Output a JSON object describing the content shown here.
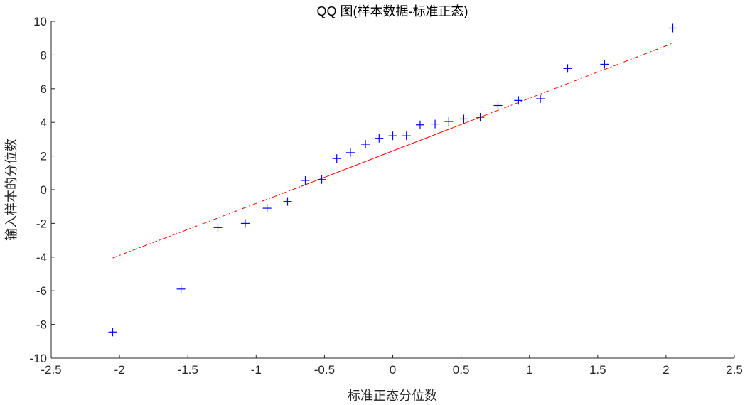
{
  "chart_data": {
    "type": "scatter",
    "title": "QQ 图(样本数据-标准正态)",
    "xlabel": "标准正态分位数",
    "ylabel": "输入样本的分位数",
    "xlim": [
      -2.5,
      2.5
    ],
    "ylim": [
      -10,
      10
    ],
    "xticks": [
      "-2.5",
      "-2",
      "-1.5",
      "-1",
      "-0.5",
      "0",
      "0.5",
      "1",
      "1.5",
      "2",
      "2.5"
    ],
    "yticks": [
      "-10",
      "-8",
      "-6",
      "-4",
      "-2",
      "0",
      "2",
      "4",
      "6",
      "8",
      "10"
    ],
    "grid": false,
    "series": [
      {
        "marker": "+",
        "color": "#0000ff",
        "points": [
          {
            "x": -2.05,
            "y": -8.45
          },
          {
            "x": -1.55,
            "y": -5.9
          },
          {
            "x": -1.28,
            "y": -2.25
          },
          {
            "x": -1.08,
            "y": -2.0
          },
          {
            "x": -0.92,
            "y": -1.1
          },
          {
            "x": -0.77,
            "y": -0.7
          },
          {
            "x": -0.64,
            "y": 0.55
          },
          {
            "x": -0.52,
            "y": 0.6
          },
          {
            "x": -0.41,
            "y": 1.85
          },
          {
            "x": -0.31,
            "y": 2.2
          },
          {
            "x": -0.2,
            "y": 2.7
          },
          {
            "x": -0.1,
            "y": 3.05
          },
          {
            "x": 0.0,
            "y": 3.2
          },
          {
            "x": 0.1,
            "y": 3.2
          },
          {
            "x": 0.2,
            "y": 3.85
          },
          {
            "x": 0.31,
            "y": 3.9
          },
          {
            "x": 0.41,
            "y": 4.05
          },
          {
            "x": 0.52,
            "y": 4.2
          },
          {
            "x": 0.64,
            "y": 4.3
          },
          {
            "x": 0.77,
            "y": 5.0
          },
          {
            "x": 0.92,
            "y": 5.3
          },
          {
            "x": 1.08,
            "y": 5.4
          },
          {
            "x": 1.28,
            "y": 7.2
          },
          {
            "x": 1.55,
            "y": 7.45
          },
          {
            "x": 2.05,
            "y": 9.6
          }
        ]
      }
    ],
    "reference_line": {
      "color": "#ff0000",
      "solid": {
        "x1": -0.67,
        "y1": 0.2,
        "x2": 0.67,
        "y2": 4.4
      },
      "dashed_left": {
        "x1": -2.05,
        "y1": -4.05,
        "x2": -0.67,
        "y2": 0.2
      },
      "dashed_right": {
        "x1": 0.67,
        "y1": 4.4,
        "x2": 2.05,
        "y2": 8.7
      }
    }
  }
}
